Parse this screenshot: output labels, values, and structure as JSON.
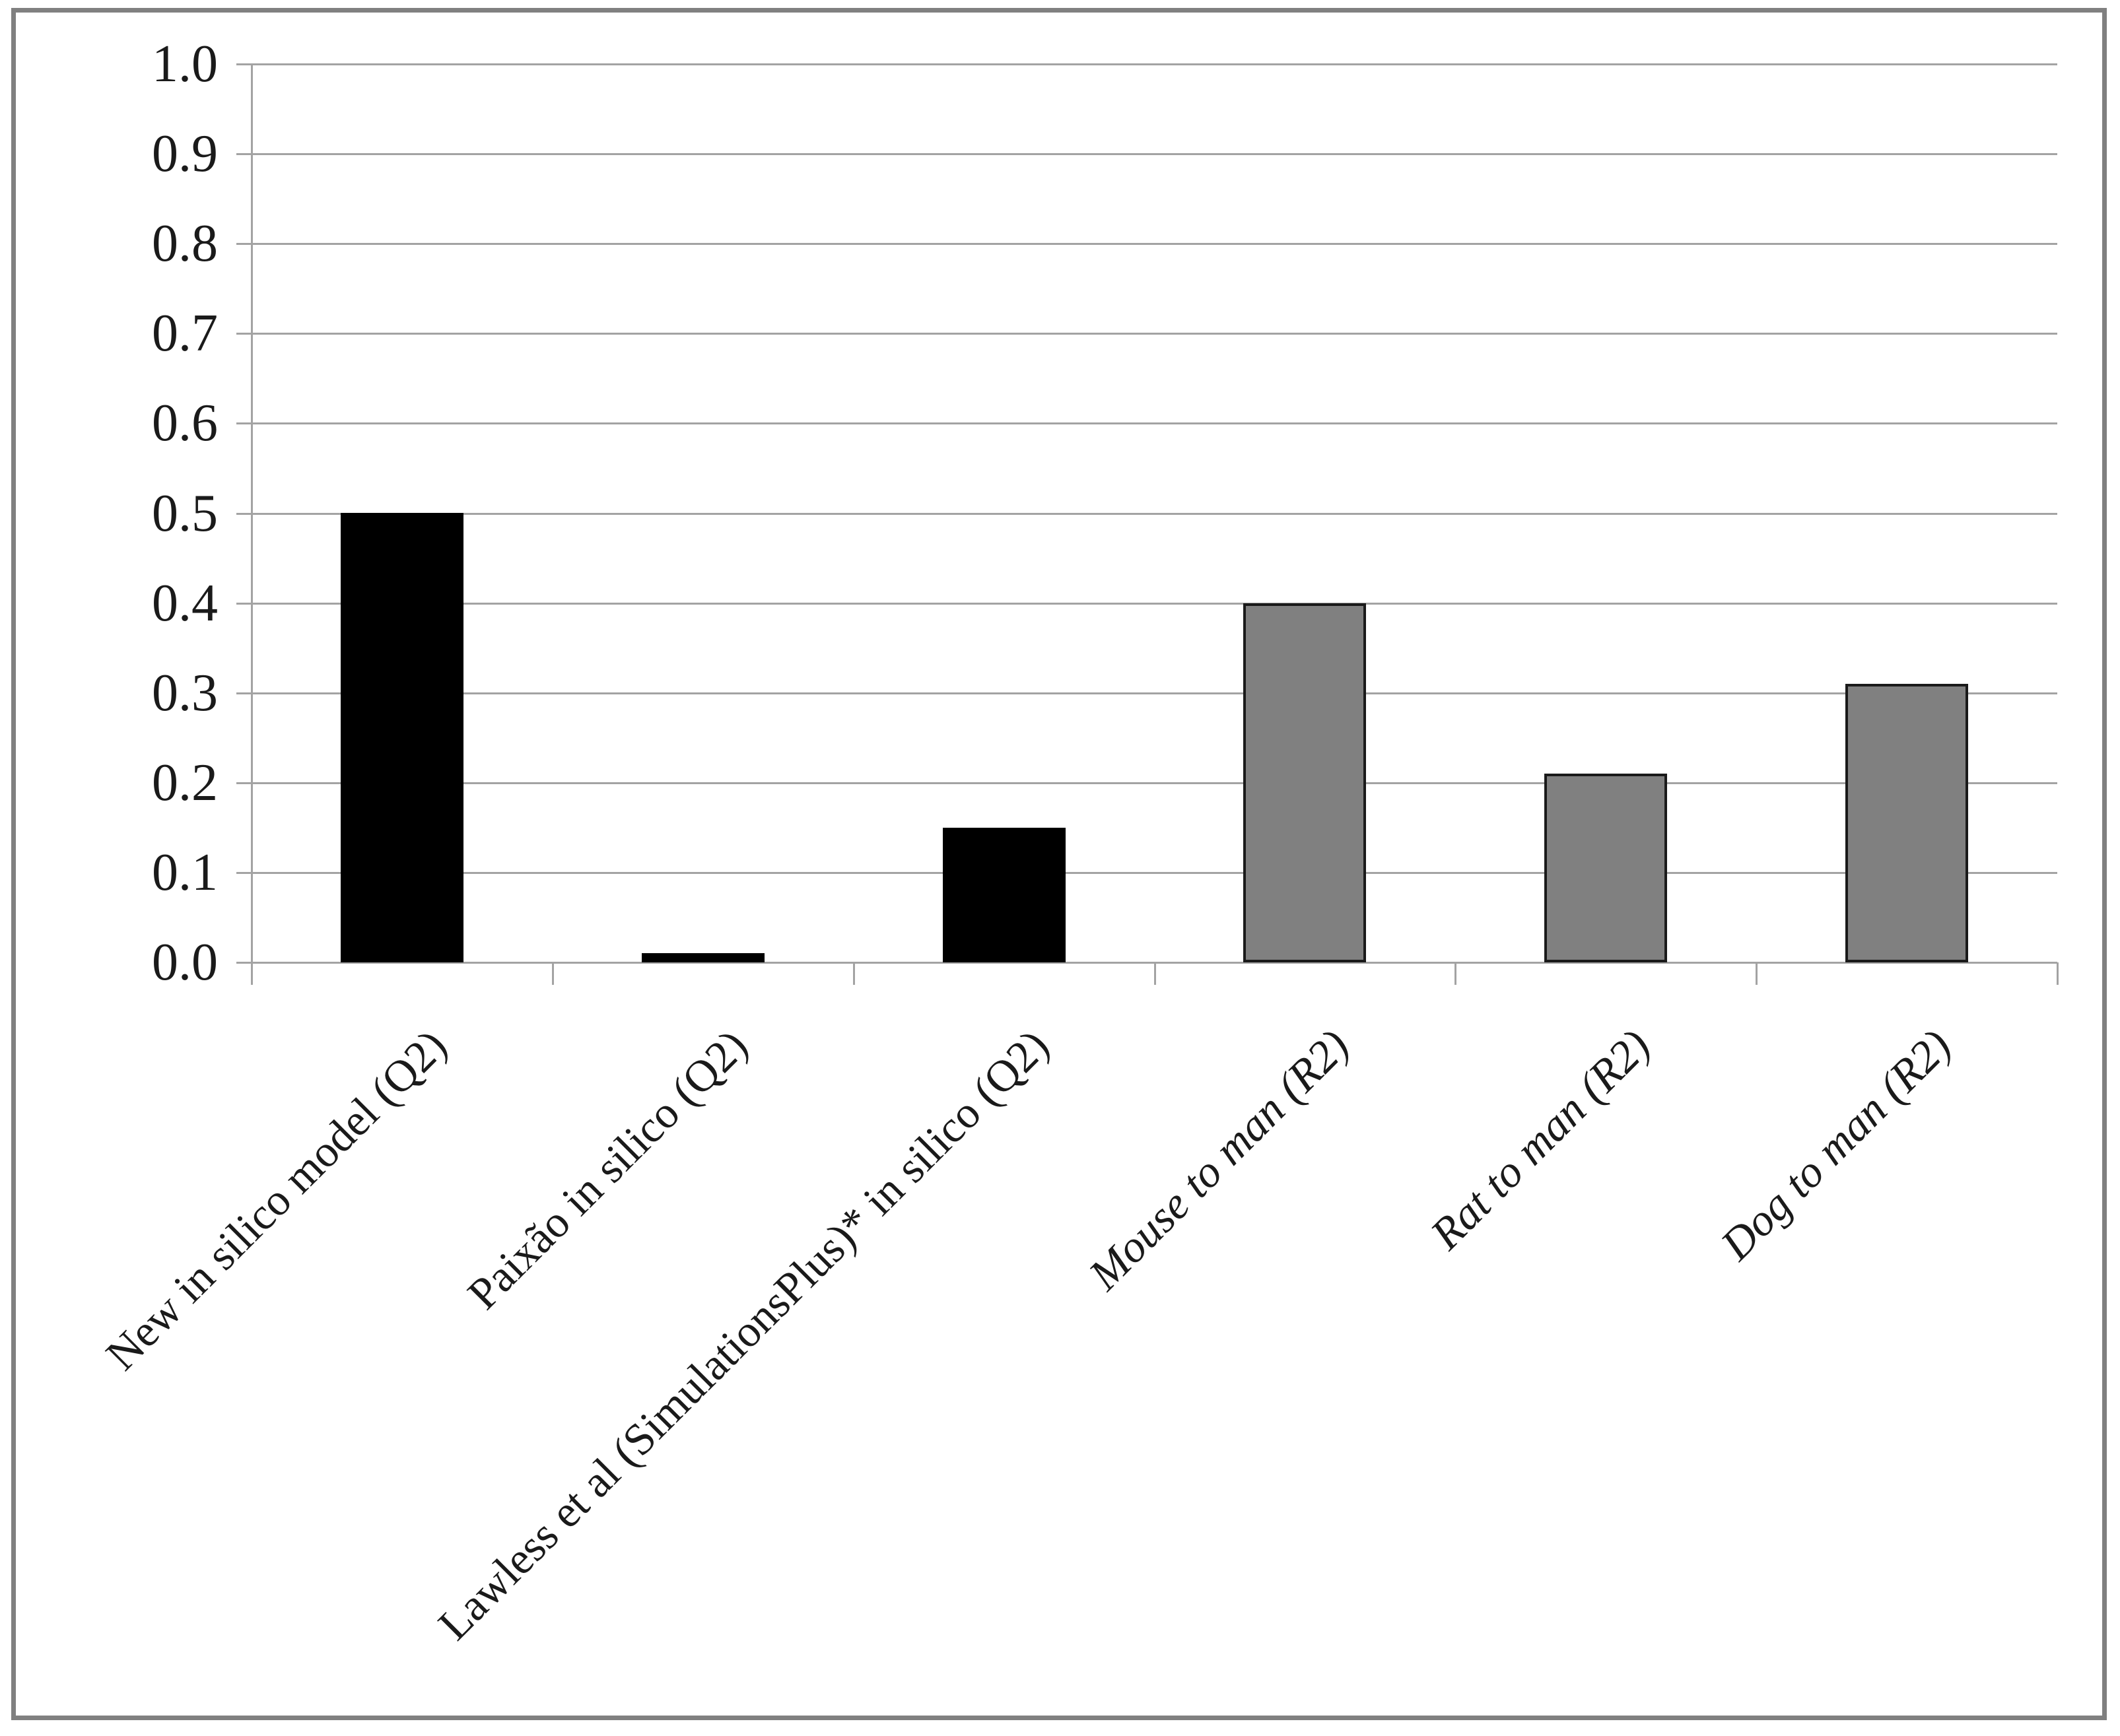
{
  "chart_data": {
    "type": "bar",
    "title": "",
    "categories": [
      "New in silico model (Q2)",
      "Paixão in silico (Q2)",
      "Lawless et al (SimulationsPlus)* in silico (Q2)",
      "Mouse to man (R2)",
      "Rat to man (R2)",
      "Dog to man (R2)"
    ],
    "values": [
      0.5,
      0.01,
      0.15,
      0.4,
      0.21,
      0.31
    ],
    "bar_colors": [
      "#000000",
      "#000000",
      "#000000",
      "#808080",
      "#808080",
      "#808080"
    ],
    "bar_outline_colors": [
      "#000000",
      "#000000",
      "#000000",
      "#1a1a1a",
      "#1a1a1a",
      "#1a1a1a"
    ],
    "label_italic": [
      false,
      false,
      false,
      true,
      true,
      true
    ],
    "xlabel": "",
    "ylabel": "",
    "ylim": [
      0.0,
      1.0
    ],
    "ytick_step": 0.1,
    "ytick_labels": [
      "0.0",
      "0.1",
      "0.2",
      "0.3",
      "0.4",
      "0.5",
      "0.6",
      "0.7",
      "0.8",
      "0.9",
      "1.0"
    ],
    "grid": "horizontal",
    "legend_position": "none",
    "colors": {
      "black_series": "#000000",
      "gray_series": "#808080",
      "gridline": "#a3a3a3",
      "frame_border": "#808080",
      "text": "#1a1a1a",
      "background": "#ffffff"
    }
  }
}
